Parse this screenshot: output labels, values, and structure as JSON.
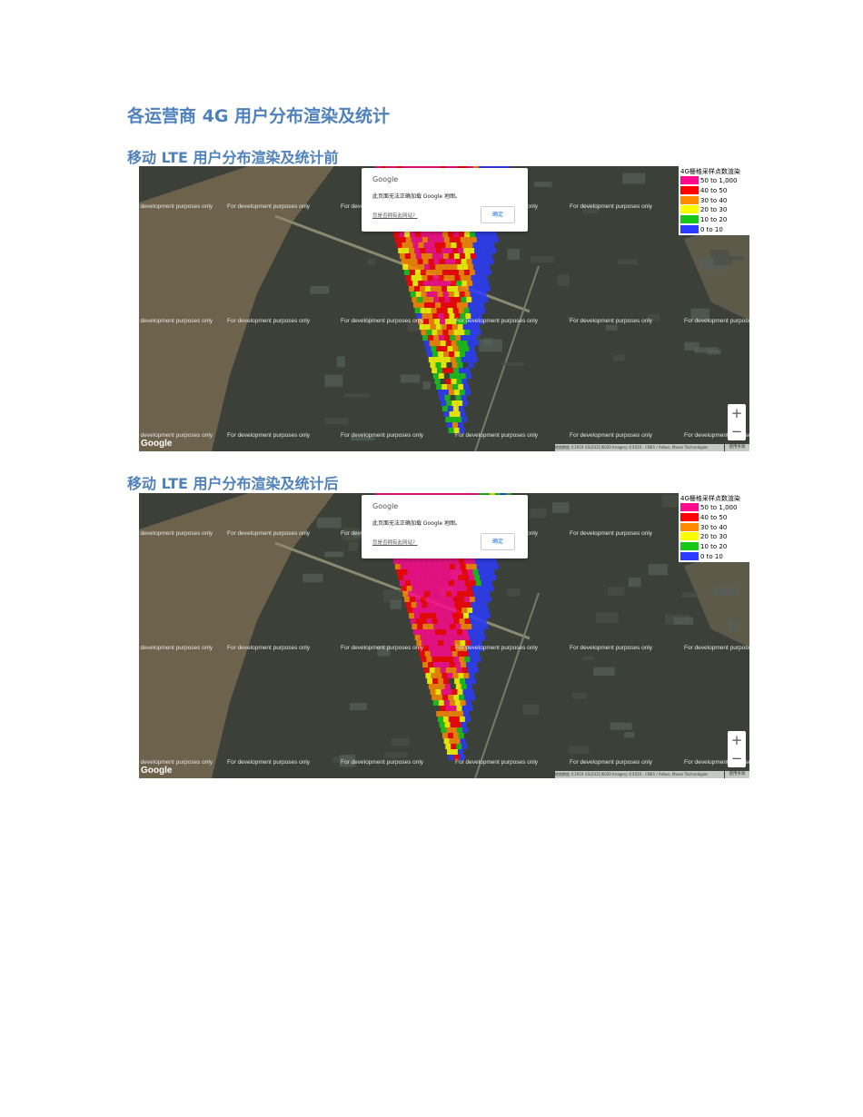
{
  "title": "各运营商 4G 用户分布渲染及统计",
  "sections": [
    {
      "heading": "移动 LTE 用户分布渲染及统计前",
      "map": {
        "watermark": "For development purposes only",
        "dialog": {
          "brand": "Google",
          "message": "此页面无法正确加载 Google 地图。",
          "link": "您是否拥有此网站？",
          "button": "确定"
        },
        "legend": {
          "title": "4G栅格采样点数渲染",
          "items": [
            {
              "label": "50 to 1,000",
              "color": "#ff0a8c"
            },
            {
              "label": "40 to 50",
              "color": "#ff0000"
            },
            {
              "label": "30 to 40",
              "color": "#ff8a00"
            },
            {
              "label": "20 to 30",
              "color": "#ffff00"
            },
            {
              "label": "10 to 20",
              "color": "#18c818"
            },
            {
              "label": "0 to 10",
              "color": "#2a3cff"
            }
          ]
        },
        "zoom_in": "+",
        "zoom_out": "−",
        "logo": "Google",
        "attribution": "地图数据 ©2019 GS(2011)6020 Imagery ©2019，CNES / Airbus, Maxar Technologies",
        "terms": "使用条款"
      }
    },
    {
      "heading": "移动 LTE 用户分布渲染及统计后",
      "map": {
        "watermark": "For development purposes only",
        "dialog": {
          "brand": "Google",
          "message": "此页面无法正确加载 Google 地图。",
          "link": "您是否拥有此网站？",
          "button": "确定"
        },
        "legend": {
          "title": "4G栅格采样点数渲染",
          "items": [
            {
              "label": "50 to 1,000",
              "color": "#ff0a8c"
            },
            {
              "label": "40 to 50",
              "color": "#ff0000"
            },
            {
              "label": "30 to 40",
              "color": "#ff8a00"
            },
            {
              "label": "20 to 30",
              "color": "#ffff00"
            },
            {
              "label": "10 to 20",
              "color": "#18c818"
            },
            {
              "label": "0 to 10",
              "color": "#2a3cff"
            }
          ]
        },
        "zoom_in": "+",
        "zoom_out": "−",
        "logo": "Google",
        "attribution": "地图数据 ©2019 GS(2011)6020 Imagery ©2019，CNES / Airbus, Maxar Technologies",
        "terms": "使用条款"
      }
    }
  ]
}
